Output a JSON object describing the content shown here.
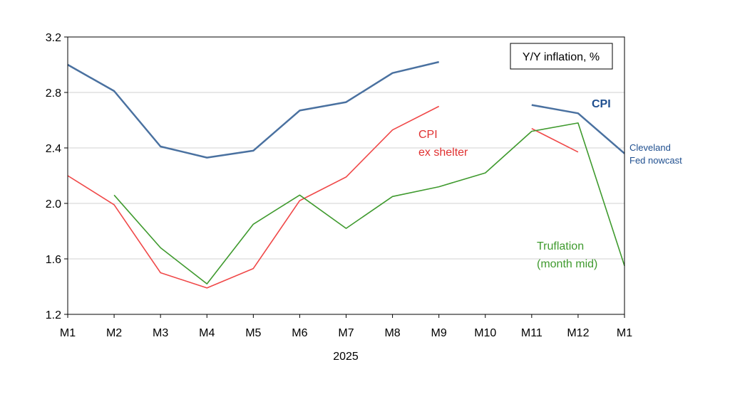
{
  "chart_data": {
    "type": "line",
    "title": "",
    "xlabel": "2025",
    "ylabel": "",
    "ylim": [
      1.2,
      3.2
    ],
    "yticks": [
      "3.2",
      "2.8",
      "2.4",
      "2.0",
      "1.6",
      "1.2"
    ],
    "categories": [
      "M1",
      "M2",
      "M3",
      "M4",
      "M5",
      "M6",
      "M7",
      "M8",
      "M9",
      "M10",
      "M11",
      "M12",
      "M1"
    ],
    "grid": "horizontal",
    "legend_box": "Y/Y inflation, %",
    "series": [
      {
        "name": "CPI",
        "color": "#4a71a0",
        "values": [
          3.0,
          2.81,
          2.41,
          2.33,
          2.38,
          2.67,
          2.73,
          2.94,
          3.02,
          null,
          null,
          null,
          null
        ]
      },
      {
        "name": "Cleveland Fed nowcast",
        "color": "#4a71a0",
        "values": [
          null,
          null,
          null,
          null,
          null,
          null,
          null,
          null,
          null,
          null,
          2.71,
          2.65,
          2.36
        ]
      },
      {
        "name": "CPI ex shelter",
        "color": "#f04848",
        "values": [
          2.2,
          1.99,
          1.5,
          1.39,
          1.53,
          2.02,
          2.19,
          2.53,
          2.7,
          null,
          2.54,
          2.37,
          null
        ]
      },
      {
        "name": "Truflation (month mid)",
        "color": "#3f9a2e",
        "values": [
          null,
          2.06,
          1.68,
          1.42,
          1.85,
          2.06,
          1.82,
          2.05,
          2.12,
          2.22,
          2.52,
          2.58,
          1.55
        ]
      }
    ],
    "annotations": {
      "cpi": "CPI",
      "cpi_ex_1": "CPI",
      "cpi_ex_2": "ex shelter",
      "cleveland_1": "Cleveland",
      "cleveland_2": "Fed nowcast",
      "truflation_1": "Truflation",
      "truflation_2": "(month mid)"
    }
  }
}
